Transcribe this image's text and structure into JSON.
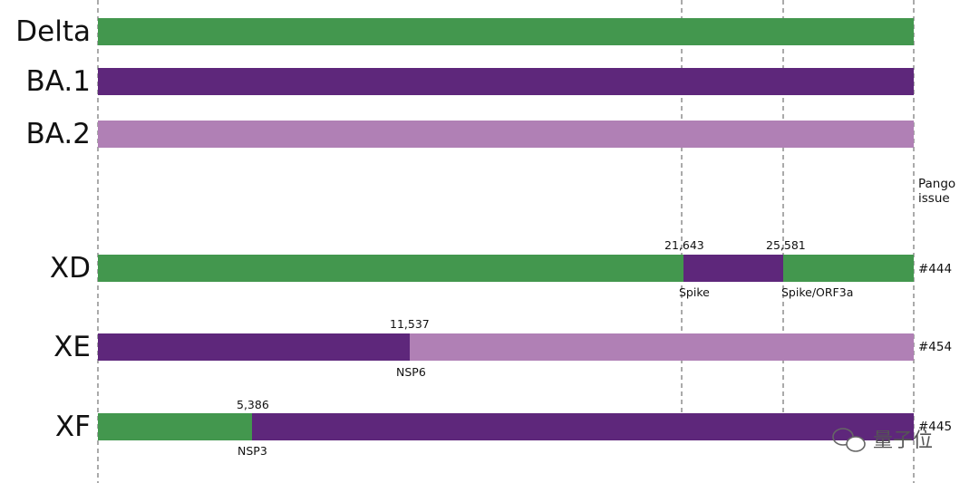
{
  "lineages": [
    {
      "label": "Delta"
    },
    {
      "label": "BA.1"
    },
    {
      "label": "BA.2"
    },
    {
      "label": "XD",
      "breakpoints": [
        "21,643",
        "25,581"
      ],
      "genes": [
        "Spike",
        "Spike/ORF3a"
      ],
      "issue": "#444"
    },
    {
      "label": "XE",
      "breakpoints": [
        "11,537"
      ],
      "genes": [
        "NSP6"
      ],
      "issue": "#454"
    },
    {
      "label": "XF",
      "breakpoints": [
        "5,386"
      ],
      "genes": [
        "NSP3"
      ],
      "issue": "#445"
    }
  ],
  "issue_header": "Pango issue",
  "watermark": "量子位"
}
